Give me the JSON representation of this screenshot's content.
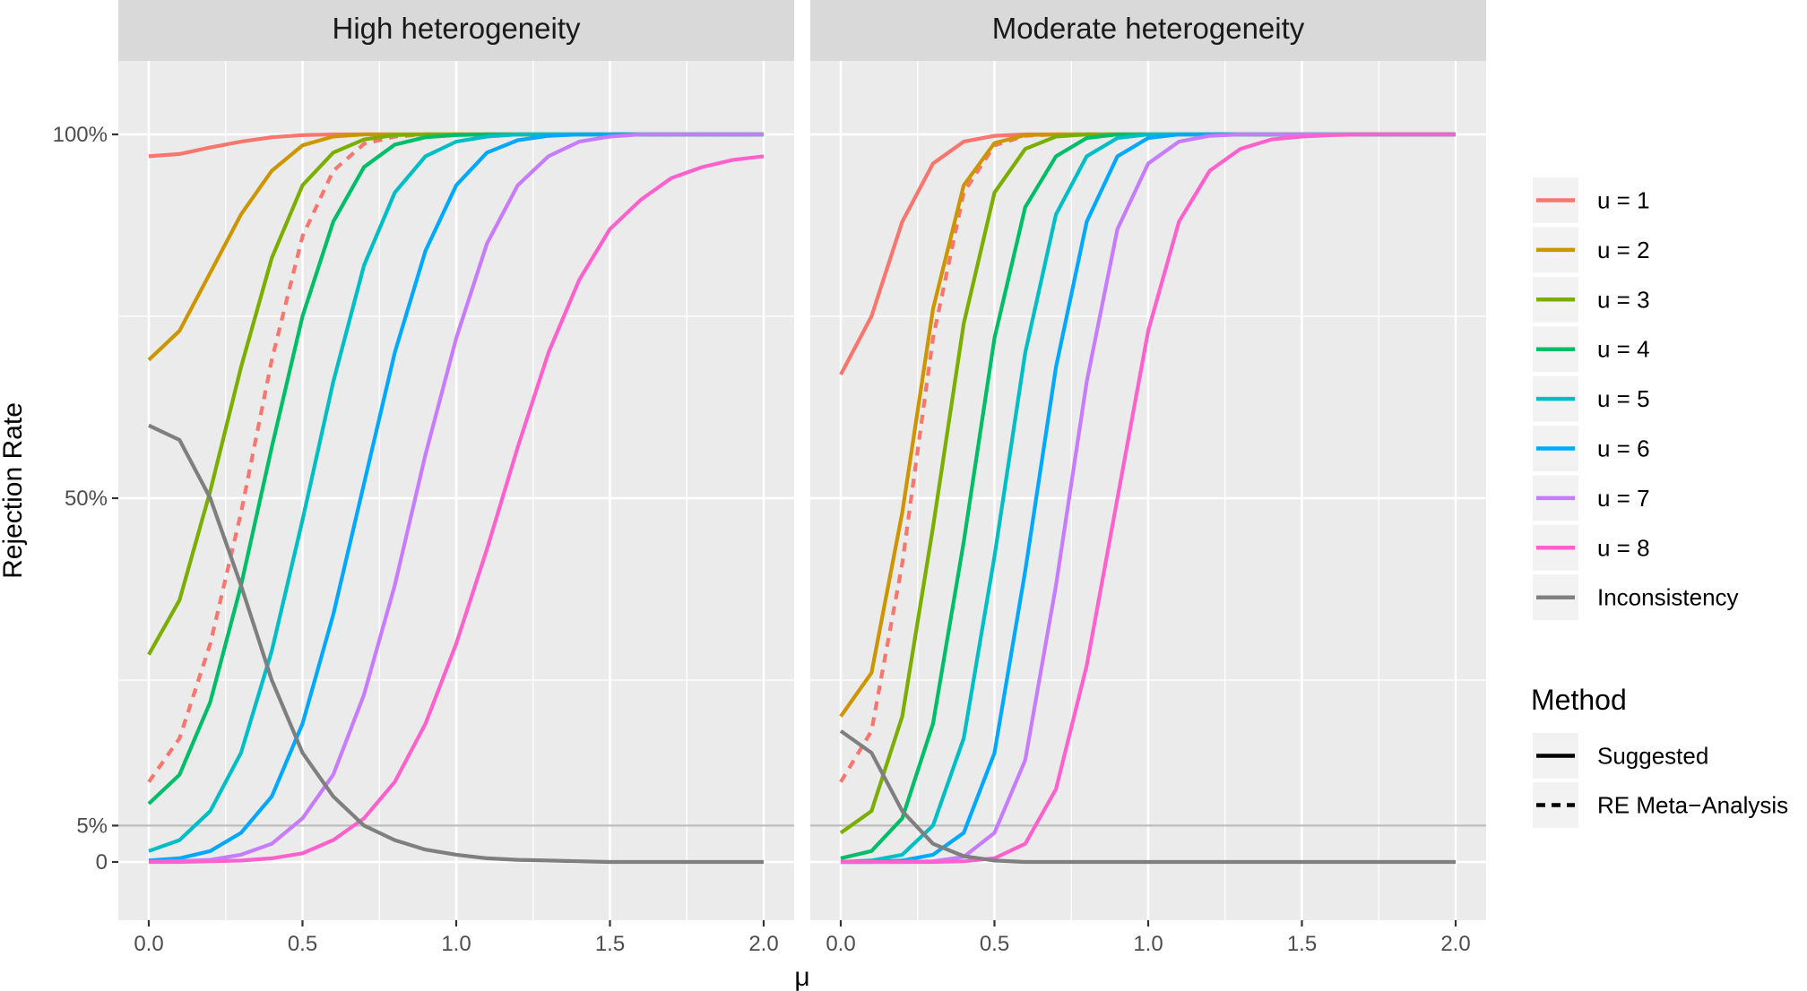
{
  "chart_data": {
    "type": "line",
    "xlabel": "μ",
    "ylabel": "Rejection Rate",
    "xlim": [
      0,
      2
    ],
    "ylim": [
      0,
      1
    ],
    "x_ticks": [
      {
        "value": 0.0,
        "label": "0.0"
      },
      {
        "value": 0.5,
        "label": "0.5"
      },
      {
        "value": 1.0,
        "label": "1.0"
      },
      {
        "value": 1.5,
        "label": "1.5"
      },
      {
        "value": 2.0,
        "label": "2.0"
      }
    ],
    "y_ticks": [
      {
        "value": 0,
        "label": "0"
      },
      {
        "value": 0.05,
        "label": "5%"
      },
      {
        "value": 0.5,
        "label": "50%"
      },
      {
        "value": 1.0,
        "label": "100%"
      }
    ],
    "reference_line": {
      "y": 0.05,
      "color": "#bebebe"
    },
    "grid": true,
    "legend_position": "right",
    "colors": {
      "u1": "#F8766D",
      "u2": "#CD9600",
      "u3": "#7CAE00",
      "u4": "#00BE67",
      "u5": "#00BFC4",
      "u6": "#00A9FF",
      "u7": "#C77CFF",
      "u8": "#FF61CC",
      "inconsistency": "#7f7f7f"
    },
    "x": [
      0,
      0.1,
      0.2,
      0.3,
      0.4,
      0.5,
      0.6,
      0.7,
      0.8,
      0.9,
      1.0,
      1.1,
      1.2,
      1.3,
      1.4,
      1.5,
      1.6,
      1.7,
      1.8,
      1.9,
      2.0
    ],
    "panels": [
      {
        "title": "High heterogeneity",
        "series": [
          {
            "name": "u = 1",
            "color_key": "u1",
            "method": "Suggested",
            "values": [
              0.97,
              0.973,
              0.982,
              0.99,
              0.996,
              0.999,
              1,
              1,
              1,
              1,
              1,
              1,
              1,
              1,
              1,
              1,
              1,
              1,
              1,
              1,
              1
            ]
          },
          {
            "name": "u = 1",
            "color_key": "u1",
            "method": "RE Meta-Analysis",
            "values": [
              0.11,
              0.17,
              0.3,
              0.48,
              0.69,
              0.86,
              0.95,
              0.987,
              0.997,
              1,
              1,
              1,
              1,
              1,
              1,
              1,
              1,
              1,
              1,
              1,
              1
            ]
          },
          {
            "name": "u = 2",
            "color_key": "u2",
            "method": "Suggested",
            "values": [
              0.69,
              0.73,
              0.81,
              0.89,
              0.95,
              0.985,
              0.997,
              1,
              1,
              1,
              1,
              1,
              1,
              1,
              1,
              1,
              1,
              1,
              1,
              1,
              1
            ]
          },
          {
            "name": "u = 3",
            "color_key": "u3",
            "method": "Suggested",
            "values": [
              0.285,
              0.36,
              0.51,
              0.68,
              0.83,
              0.93,
              0.975,
              0.993,
              0.999,
              1,
              1,
              1,
              1,
              1,
              1,
              1,
              1,
              1,
              1,
              1,
              1
            ]
          },
          {
            "name": "u = 4",
            "color_key": "u4",
            "method": "Suggested",
            "values": [
              0.08,
              0.12,
              0.22,
              0.38,
              0.57,
              0.75,
              0.88,
              0.955,
              0.986,
              0.996,
              0.999,
              1,
              1,
              1,
              1,
              1,
              1,
              1,
              1,
              1,
              1
            ]
          },
          {
            "name": "u = 5",
            "color_key": "u5",
            "method": "Suggested",
            "values": [
              0.015,
              0.03,
              0.07,
              0.15,
              0.29,
              0.47,
              0.66,
              0.82,
              0.92,
              0.97,
              0.99,
              0.997,
              1,
              1,
              1,
              1,
              1,
              1,
              1,
              1,
              1
            ]
          },
          {
            "name": "u = 6",
            "color_key": "u6",
            "method": "Suggested",
            "values": [
              0.002,
              0.005,
              0.015,
              0.04,
              0.09,
              0.19,
              0.34,
              0.52,
              0.7,
              0.84,
              0.93,
              0.975,
              0.992,
              0.998,
              1,
              1,
              1,
              1,
              1,
              1,
              1
            ]
          },
          {
            "name": "u = 7",
            "color_key": "u7",
            "method": "Suggested",
            "values": [
              0,
              0.001,
              0.003,
              0.01,
              0.025,
              0.06,
              0.12,
              0.23,
              0.38,
              0.56,
              0.72,
              0.85,
              0.93,
              0.97,
              0.99,
              0.997,
              1,
              1,
              1,
              1,
              1
            ]
          },
          {
            "name": "u = 8",
            "color_key": "u8",
            "method": "Suggested",
            "values": [
              0,
              0,
              0.001,
              0.002,
              0.005,
              0.012,
              0.03,
              0.06,
              0.11,
              0.19,
              0.3,
              0.43,
              0.57,
              0.7,
              0.8,
              0.87,
              0.91,
              0.94,
              0.955,
              0.965,
              0.97
            ]
          },
          {
            "name": "Inconsistency",
            "color_key": "inconsistency",
            "method": "Suggested",
            "values": [
              0.6,
              0.58,
              0.5,
              0.38,
              0.25,
              0.15,
              0.09,
              0.05,
              0.03,
              0.017,
              0.01,
              0.005,
              0.003,
              0.002,
              0.001,
              0,
              0,
              0,
              0,
              0,
              0
            ]
          }
        ]
      },
      {
        "title": "Moderate heterogeneity",
        "series": [
          {
            "name": "u = 1",
            "color_key": "u1",
            "method": "Suggested",
            "values": [
              0.67,
              0.75,
              0.88,
              0.96,
              0.99,
              0.998,
              1,
              1,
              1,
              1,
              1,
              1,
              1,
              1,
              1,
              1,
              1,
              1,
              1,
              1,
              1
            ]
          },
          {
            "name": "u = 1",
            "color_key": "u1",
            "method": "RE Meta-Analysis",
            "values": [
              0.11,
              0.18,
              0.41,
              0.72,
              0.92,
              0.985,
              0.998,
              1,
              1,
              1,
              1,
              1,
              1,
              1,
              1,
              1,
              1,
              1,
              1,
              1,
              1
            ]
          },
          {
            "name": "u = 2",
            "color_key": "u2",
            "method": "Suggested",
            "values": [
              0.2,
              0.26,
              0.48,
              0.76,
              0.93,
              0.988,
              0.999,
              1,
              1,
              1,
              1,
              1,
              1,
              1,
              1,
              1,
              1,
              1,
              1,
              1,
              1
            ]
          },
          {
            "name": "u = 3",
            "color_key": "u3",
            "method": "Suggested",
            "values": [
              0.04,
              0.07,
              0.2,
              0.46,
              0.74,
              0.92,
              0.98,
              0.997,
              1,
              1,
              1,
              1,
              1,
              1,
              1,
              1,
              1,
              1,
              1,
              1,
              1
            ]
          },
          {
            "name": "u = 4",
            "color_key": "u4",
            "method": "Suggested",
            "values": [
              0.005,
              0.015,
              0.06,
              0.19,
              0.44,
              0.72,
              0.9,
              0.97,
              0.995,
              1,
              1,
              1,
              1,
              1,
              1,
              1,
              1,
              1,
              1,
              1,
              1
            ]
          },
          {
            "name": "u = 5",
            "color_key": "u5",
            "method": "Suggested",
            "values": [
              0,
              0.002,
              0.01,
              0.05,
              0.17,
              0.42,
              0.7,
              0.89,
              0.97,
              0.995,
              1,
              1,
              1,
              1,
              1,
              1,
              1,
              1,
              1,
              1,
              1
            ]
          },
          {
            "name": "u = 6",
            "color_key": "u6",
            "method": "Suggested",
            "values": [
              0,
              0,
              0.002,
              0.01,
              0.04,
              0.15,
              0.4,
              0.68,
              0.88,
              0.97,
              0.995,
              1,
              1,
              1,
              1,
              1,
              1,
              1,
              1,
              1,
              1
            ]
          },
          {
            "name": "u = 7",
            "color_key": "u7",
            "method": "Suggested",
            "values": [
              0,
              0,
              0,
              0.001,
              0.007,
              0.04,
              0.14,
              0.38,
              0.66,
              0.87,
              0.96,
              0.99,
              0.998,
              1,
              1,
              1,
              1,
              1,
              1,
              1,
              1
            ]
          },
          {
            "name": "u = 8",
            "color_key": "u8",
            "method": "Suggested",
            "values": [
              0,
              0,
              0,
              0,
              0.001,
              0.005,
              0.025,
              0.1,
              0.27,
              0.5,
              0.73,
              0.88,
              0.95,
              0.98,
              0.993,
              0.997,
              0.999,
              1,
              1,
              1,
              1
            ]
          },
          {
            "name": "Inconsistency",
            "color_key": "inconsistency",
            "method": "Suggested",
            "values": [
              0.18,
              0.15,
              0.07,
              0.025,
              0.008,
              0.002,
              0,
              0,
              0,
              0,
              0,
              0,
              0,
              0,
              0,
              0,
              0,
              0,
              0,
              0,
              0
            ]
          }
        ]
      }
    ],
    "legend": {
      "colour_entries": [
        {
          "label": "u = 1",
          "color_key": "u1"
        },
        {
          "label": "u = 2",
          "color_key": "u2"
        },
        {
          "label": "u = 3",
          "color_key": "u3"
        },
        {
          "label": "u = 4",
          "color_key": "u4"
        },
        {
          "label": "u = 5",
          "color_key": "u5"
        },
        {
          "label": "u = 6",
          "color_key": "u6"
        },
        {
          "label": "u = 7",
          "color_key": "u7"
        },
        {
          "label": "u = 8",
          "color_key": "u8"
        },
        {
          "label": "Inconsistency",
          "color_key": "inconsistency"
        }
      ],
      "method_title": "Method",
      "method_entries": [
        {
          "label": "Suggested",
          "line": "solid"
        },
        {
          "label": "RE Meta−Analysis",
          "line": "dashed"
        }
      ]
    }
  }
}
